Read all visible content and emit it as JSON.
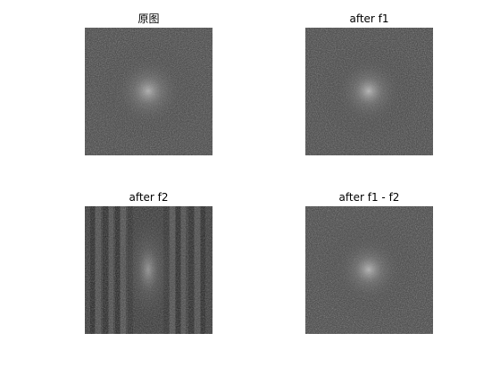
{
  "figure": {
    "subplots": [
      {
        "id": "original",
        "title": "原图",
        "content": "fft-spectrum"
      },
      {
        "id": "after-f1",
        "title": "after f1",
        "content": "fft-spectrum"
      },
      {
        "id": "after-f2",
        "title": "after f2",
        "content": "fft-spectrum-with-vertical-stripes"
      },
      {
        "id": "after-f1-minus-f2",
        "title": "after f1 - f2",
        "content": "fft-spectrum"
      }
    ]
  },
  "colors": {
    "background": "#ffffff",
    "spectrum_base": "#3b3b3b",
    "spectrum_center_glow": "#bdbdbd"
  }
}
